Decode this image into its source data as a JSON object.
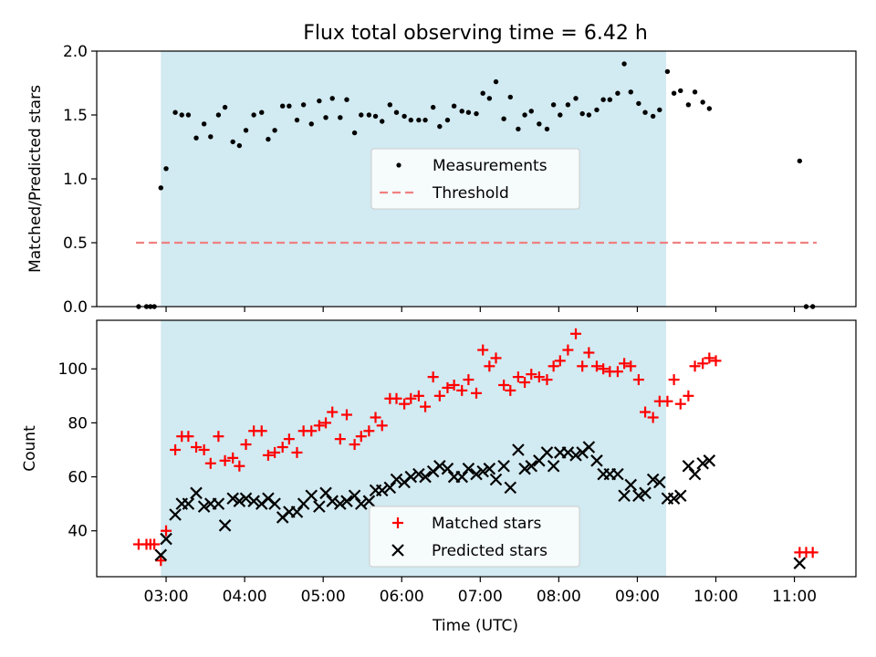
{
  "figure_title": "Flux total observing time = 6.42 h",
  "chart_data": [
    {
      "type": "scatter",
      "title": "Flux total observing time = 6.42 h",
      "xlabel": "",
      "ylabel": "Matched/Predicted stars",
      "xlim": [
        "02:07",
        "11:47"
      ],
      "ylim": [
        0,
        2.0
      ],
      "yticks": [
        0.0,
        0.5,
        1.0,
        1.5,
        2.0
      ],
      "ytick_labels": [
        "0.0",
        "0.5",
        "1.0",
        "1.5",
        "2.0"
      ],
      "grid": false,
      "legend_position": "center",
      "shaded_interval": [
        "02:56",
        "09:22"
      ],
      "threshold": {
        "y": 0.5,
        "x_start": "02:37",
        "x_end": "11:17",
        "color": "#f08080"
      },
      "series": [
        {
          "name": "Measurements",
          "marker": "dot",
          "color": "#000000",
          "points": [
            [
              "02:39",
              0
            ],
            [
              "02:45",
              0
            ],
            [
              "02:48",
              0
            ],
            [
              "02:51",
              0
            ],
            [
              "02:56",
              0.93
            ],
            [
              "03:00",
              1.08
            ],
            [
              "03:07",
              1.52
            ],
            [
              "03:12",
              1.5
            ],
            [
              "03:17",
              1.5
            ],
            [
              "03:23",
              1.32
            ],
            [
              "03:29",
              1.43
            ],
            [
              "03:34",
              1.33
            ],
            [
              "03:40",
              1.5
            ],
            [
              "03:45",
              1.56
            ],
            [
              "03:51",
              1.29
            ],
            [
              "03:56",
              1.26
            ],
            [
              "04:01",
              1.38
            ],
            [
              "04:07",
              1.5
            ],
            [
              "04:13",
              1.52
            ],
            [
              "04:18",
              1.31
            ],
            [
              "04:23",
              1.38
            ],
            [
              "04:29",
              1.57
            ],
            [
              "04:34",
              1.57
            ],
            [
              "04:40",
              1.46
            ],
            [
              "04:45",
              1.58
            ],
            [
              "04:51",
              1.43
            ],
            [
              "04:57",
              1.61
            ],
            [
              "05:02",
              1.48
            ],
            [
              "05:07",
              1.63
            ],
            [
              "05:13",
              1.48
            ],
            [
              "05:18",
              1.62
            ],
            [
              "05:24",
              1.36
            ],
            [
              "05:29",
              1.5
            ],
            [
              "05:35",
              1.5
            ],
            [
              "05:40",
              1.49
            ],
            [
              "05:45",
              1.45
            ],
            [
              "05:51",
              1.58
            ],
            [
              "05:56",
              1.52
            ],
            [
              "06:02",
              1.49
            ],
            [
              "06:07",
              1.46
            ],
            [
              "06:13",
              1.46
            ],
            [
              "06:18",
              1.46
            ],
            [
              "06:24",
              1.56
            ],
            [
              "06:29",
              1.41
            ],
            [
              "06:35",
              1.46
            ],
            [
              "06:40",
              1.57
            ],
            [
              "06:46",
              1.53
            ],
            [
              "06:51",
              1.52
            ],
            [
              "06:57",
              1.51
            ],
            [
              "07:02",
              1.67
            ],
            [
              "07:07",
              1.63
            ],
            [
              "07:12",
              1.76
            ],
            [
              "07:18",
              1.47
            ],
            [
              "07:23",
              1.64
            ],
            [
              "07:29",
              1.39
            ],
            [
              "07:34",
              1.5
            ],
            [
              "07:39",
              1.53
            ],
            [
              "07:45",
              1.43
            ],
            [
              "07:51",
              1.39
            ],
            [
              "07:56",
              1.58
            ],
            [
              "08:01",
              1.5
            ],
            [
              "08:07",
              1.58
            ],
            [
              "08:13",
              1.63
            ],
            [
              "08:18",
              1.51
            ],
            [
              "08:23",
              1.5
            ],
            [
              "08:29",
              1.54
            ],
            [
              "08:34",
              1.62
            ],
            [
              "08:39",
              1.62
            ],
            [
              "08:45",
              1.67
            ],
            [
              "08:50",
              1.9
            ],
            [
              "08:55",
              1.68
            ],
            [
              "09:01",
              1.59
            ],
            [
              "09:06",
              1.52
            ],
            [
              "09:12",
              1.49
            ],
            [
              "09:17",
              1.54
            ],
            [
              "09:23",
              1.84
            ],
            [
              "09:28",
              1.67
            ],
            [
              "09:33",
              1.69
            ],
            [
              "09:39",
              1.58
            ],
            [
              "09:44",
              1.68
            ],
            [
              "09:50",
              1.6
            ],
            [
              "09:55",
              1.55
            ],
            [
              "11:04",
              1.14
            ],
            [
              "11:09",
              0
            ],
            [
              "11:14",
              0
            ]
          ]
        },
        {
          "name": "Threshold",
          "marker": "dashed-line",
          "color": "#f08080"
        }
      ]
    },
    {
      "type": "scatter",
      "title": "",
      "xlabel": "Time (UTC)",
      "ylabel": "Count",
      "xlim": [
        "02:07",
        "11:47"
      ],
      "ylim": [
        23,
        118
      ],
      "xticks": [
        "03:00",
        "04:00",
        "05:00",
        "06:00",
        "07:00",
        "08:00",
        "09:00",
        "10:00",
        "11:00"
      ],
      "yticks": [
        40,
        60,
        80,
        100
      ],
      "grid": false,
      "legend_position": "lower center",
      "shaded_interval": [
        "02:56",
        "09:22"
      ],
      "series": [
        {
          "name": "Matched stars",
          "marker": "plus",
          "color": "#ff0000",
          "points": [
            [
              "02:39",
              35
            ],
            [
              "02:45",
              35
            ],
            [
              "02:48",
              35
            ],
            [
              "02:51",
              35
            ],
            [
              "02:56",
              29
            ],
            [
              "03:00",
              40
            ],
            [
              "03:07",
              70
            ],
            [
              "03:12",
              75
            ],
            [
              "03:17",
              75
            ],
            [
              "03:23",
              71
            ],
            [
              "03:29",
              70
            ],
            [
              "03:34",
              65
            ],
            [
              "03:40",
              75
            ],
            [
              "03:45",
              66
            ],
            [
              "03:51",
              67
            ],
            [
              "03:56",
              64
            ],
            [
              "04:01",
              72
            ],
            [
              "04:07",
              77
            ],
            [
              "04:13",
              77
            ],
            [
              "04:18",
              68
            ],
            [
              "04:23",
              69
            ],
            [
              "04:29",
              71
            ],
            [
              "04:34",
              74
            ],
            [
              "04:40",
              69
            ],
            [
              "04:45",
              77
            ],
            [
              "04:51",
              77
            ],
            [
              "04:57",
              79
            ],
            [
              "05:02",
              80
            ],
            [
              "05:07",
              84
            ],
            [
              "05:13",
              74
            ],
            [
              "05:18",
              83
            ],
            [
              "05:24",
              72
            ],
            [
              "05:29",
              75
            ],
            [
              "05:35",
              77
            ],
            [
              "05:40",
              82
            ],
            [
              "05:45",
              79
            ],
            [
              "05:51",
              89
            ],
            [
              "05:56",
              89
            ],
            [
              "06:02",
              87
            ],
            [
              "06:07",
              89
            ],
            [
              "06:13",
              90
            ],
            [
              "06:18",
              86
            ],
            [
              "06:24",
              97
            ],
            [
              "06:29",
              90
            ],
            [
              "06:35",
              93
            ],
            [
              "06:40",
              94
            ],
            [
              "06:46",
              92
            ],
            [
              "06:51",
              96
            ],
            [
              "06:57",
              91
            ],
            [
              "07:02",
              107
            ],
            [
              "07:07",
              101
            ],
            [
              "07:12",
              104
            ],
            [
              "07:18",
              94
            ],
            [
              "07:23",
              92
            ],
            [
              "07:29",
              97
            ],
            [
              "07:34",
              95
            ],
            [
              "07:39",
              98
            ],
            [
              "07:45",
              97
            ],
            [
              "07:51",
              96
            ],
            [
              "07:56",
              101
            ],
            [
              "08:01",
              103
            ],
            [
              "08:07",
              107
            ],
            [
              "08:13",
              113
            ],
            [
              "08:18",
              101
            ],
            [
              "08:23",
              106
            ],
            [
              "08:29",
              101
            ],
            [
              "08:34",
              100
            ],
            [
              "08:39",
              99
            ],
            [
              "08:45",
              99
            ],
            [
              "08:50",
              102
            ],
            [
              "08:55",
              101
            ],
            [
              "09:01",
              96
            ],
            [
              "09:06",
              84
            ],
            [
              "09:12",
              82
            ],
            [
              "09:17",
              88
            ],
            [
              "09:23",
              88
            ],
            [
              "09:28",
              96
            ],
            [
              "09:33",
              87
            ],
            [
              "09:39",
              90
            ],
            [
              "09:44",
              101
            ],
            [
              "09:50",
              102
            ],
            [
              "09:55",
              104
            ],
            [
              "10:00",
              103
            ],
            [
              "11:04",
              32
            ],
            [
              "11:09",
              32
            ],
            [
              "11:14",
              32
            ]
          ]
        },
        {
          "name": "Predicted stars",
          "marker": "x",
          "color": "#000000",
          "points": [
            [
              "02:56",
              31
            ],
            [
              "03:00",
              37
            ],
            [
              "03:07",
              46
            ],
            [
              "03:12",
              50
            ],
            [
              "03:17",
              50
            ],
            [
              "03:23",
              54
            ],
            [
              "03:29",
              49
            ],
            [
              "03:34",
              50
            ],
            [
              "03:40",
              50
            ],
            [
              "03:45",
              42
            ],
            [
              "03:51",
              52
            ],
            [
              "03:56",
              51
            ],
            [
              "04:01",
              52
            ],
            [
              "04:07",
              51
            ],
            [
              "04:13",
              50
            ],
            [
              "04:18",
              52
            ],
            [
              "04:23",
              50
            ],
            [
              "04:29",
              45
            ],
            [
              "04:34",
              47
            ],
            [
              "04:40",
              47
            ],
            [
              "04:45",
              50
            ],
            [
              "04:51",
              53
            ],
            [
              "04:57",
              49
            ],
            [
              "05:02",
              54
            ],
            [
              "05:07",
              51
            ],
            [
              "05:13",
              50
            ],
            [
              "05:18",
              51
            ],
            [
              "05:24",
              53
            ],
            [
              "05:29",
              50
            ],
            [
              "05:35",
              51
            ],
            [
              "05:40",
              55
            ],
            [
              "05:45",
              55
            ],
            [
              "05:51",
              56
            ],
            [
              "05:56",
              59
            ],
            [
              "06:02",
              58
            ],
            [
              "06:07",
              60
            ],
            [
              "06:13",
              61
            ],
            [
              "06:18",
              60
            ],
            [
              "06:24",
              62
            ],
            [
              "06:29",
              64
            ],
            [
              "06:35",
              63
            ],
            [
              "06:40",
              60
            ],
            [
              "06:46",
              60
            ],
            [
              "06:51",
              63
            ],
            [
              "06:57",
              61
            ],
            [
              "07:02",
              62
            ],
            [
              "07:07",
              63
            ],
            [
              "07:12",
              59
            ],
            [
              "07:18",
              64
            ],
            [
              "07:23",
              56
            ],
            [
              "07:29",
              70
            ],
            [
              "07:34",
              63
            ],
            [
              "07:39",
              64
            ],
            [
              "07:45",
              66
            ],
            [
              "07:51",
              69
            ],
            [
              "07:56",
              64
            ],
            [
              "08:01",
              69
            ],
            [
              "08:07",
              69
            ],
            [
              "08:13",
              68
            ],
            [
              "08:18",
              69
            ],
            [
              "08:23",
              71
            ],
            [
              "08:29",
              66
            ],
            [
              "08:34",
              61
            ],
            [
              "08:39",
              61
            ],
            [
              "08:45",
              61
            ],
            [
              "08:50",
              53
            ],
            [
              "08:55",
              57
            ],
            [
              "09:01",
              53
            ],
            [
              "09:06",
              54
            ],
            [
              "09:12",
              59
            ],
            [
              "09:17",
              58
            ],
            [
              "09:23",
              52
            ],
            [
              "09:28",
              52
            ],
            [
              "09:33",
              53
            ],
            [
              "09:39",
              64
            ],
            [
              "09:44",
              61
            ],
            [
              "09:50",
              65
            ],
            [
              "09:55",
              66
            ],
            [
              "11:04",
              28
            ]
          ]
        }
      ]
    }
  ]
}
